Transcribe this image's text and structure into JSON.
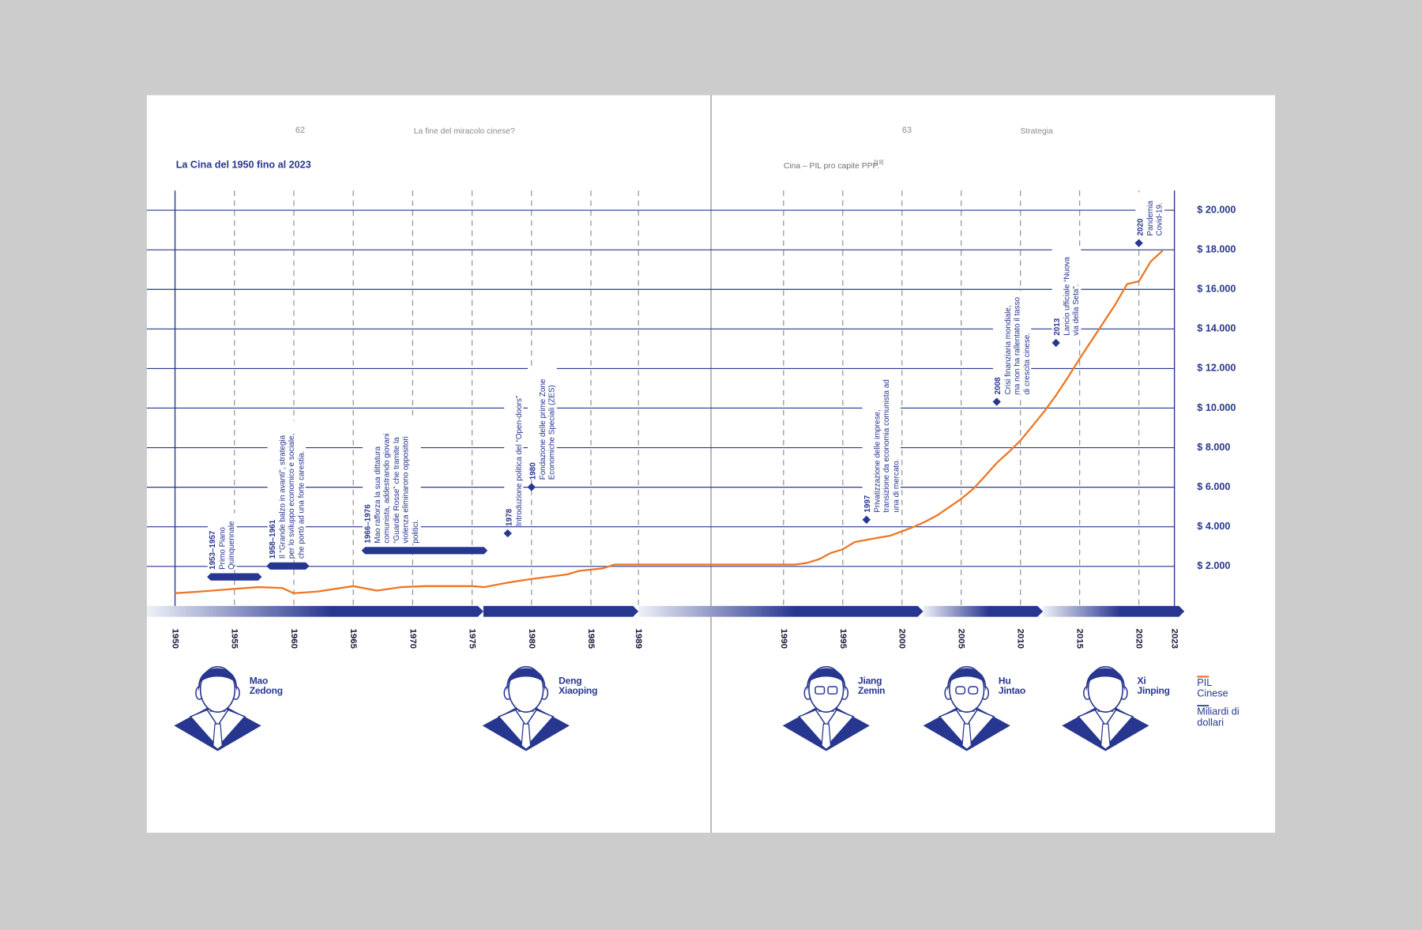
{
  "header": {
    "left_page_number": "62",
    "left_running_title": "La fine del miracolo cinese?",
    "right_page_number": "63",
    "right_running_title": "Strategia"
  },
  "chart_data": {
    "type": "line",
    "title": "La Cina del 1950 fino al 2023",
    "subtitle": "Cina – PIL pro capite PPP.",
    "footnote_ref": "[19]",
    "x": [
      1950,
      1952,
      1955,
      1957,
      1959,
      1960,
      1962,
      1965,
      1967,
      1969,
      1971,
      1975,
      1976,
      1978,
      1980,
      1983,
      1984,
      1986,
      1987,
      1989,
      1990,
      1991,
      1992,
      1993,
      1994,
      1995,
      1996,
      1998,
      1999,
      2000,
      2001,
      2002,
      2003,
      2004,
      2005,
      2006,
      2007,
      2008,
      2009,
      2010,
      2011,
      2012,
      2013,
      2014,
      2015,
      2016,
      2017,
      2018,
      2019,
      2020,
      2021,
      2022
    ],
    "series": [
      {
        "name": "PIL Cinese",
        "color": "#ee7623",
        "values": [
          640,
          720,
          860,
          950,
          910,
          640,
          730,
          1000,
          770,
          950,
          1000,
          1000,
          950,
          1180,
          1360,
          1590,
          1770,
          1900,
          2090,
          2090,
          2090,
          2090,
          2180,
          2360,
          2680,
          2860,
          3230,
          3450,
          3550,
          3770,
          4000,
          4270,
          4590,
          5000,
          5410,
          5910,
          6550,
          7230,
          7770,
          8360,
          9090,
          9820,
          10640,
          11550,
          12500,
          13410,
          14320,
          15230,
          16270,
          16410,
          17410,
          17950
        ]
      }
    ],
    "unit_label": "Miliardi di dollari",
    "axis_color": "#27378f",
    "xlim": [
      1950,
      2023
    ],
    "xbreak": [
      1989,
      1990
    ],
    "xticks": [
      1950,
      1955,
      1960,
      1965,
      1970,
      1975,
      1980,
      1985,
      1989,
      1990,
      1995,
      2000,
      2005,
      2010,
      2015,
      2020,
      2023
    ],
    "ylim": [
      0,
      21000
    ],
    "yticks": [
      {
        "value": 2000,
        "label": "$ 2.000"
      },
      {
        "value": 4000,
        "label": "$ 4.000"
      },
      {
        "value": 6000,
        "label": "$ 6.000"
      },
      {
        "value": 8000,
        "label": "$ 8.000"
      },
      {
        "value": 10000,
        "label": "$ 10.000"
      },
      {
        "value": 12000,
        "label": "$ 12.000"
      },
      {
        "value": 14000,
        "label": "$ 14.000"
      },
      {
        "value": 16000,
        "label": "$ 16.000"
      },
      {
        "value": 18000,
        "label": "$ 18.000"
      },
      {
        "value": 20000,
        "label": "$ 20.000"
      }
    ],
    "grid": true,
    "events": [
      {
        "label": "1953–1957",
        "text": "Primo Piano Quinquennale",
        "from": 1953,
        "to": 1957
      },
      {
        "label": "1958–1961",
        "text": "Il “Grande balzo in avanti”, strategia per lo sviluppo economico e sociale, che portò ad una forte carestia.",
        "from": 1958,
        "to": 1961
      },
      {
        "label": "1966–1976",
        "text": "Mao rafforza la sua dittatura comunista, addestrando giovani “Guardie Rosse” che tramite la violenza eliminarono oppositori politici.",
        "from": 1966,
        "to": 1976
      },
      {
        "label": "1978",
        "text": "Introduzione politica del “Open-doors”",
        "year": 1978
      },
      {
        "label": "1980",
        "text": "Fondazione delle prime Zone Economiche Speciali (ZES)",
        "year": 1980
      },
      {
        "label": "1997",
        "text": "Privatizzazione delle imprese, transizione da economia comunista ad una di mercato.",
        "year": 1997
      },
      {
        "label": "2008",
        "text": "Crisi finanziaria mondiale, ma non ha rallentato il tasso di crescita cinese.",
        "year": 2008
      },
      {
        "label": "2013",
        "text": "Lancio ufficiale “Nuova via della Seta”.",
        "year": 2013
      },
      {
        "label": "2020",
        "text": "Pandemia Covid-19.",
        "year": 2020
      }
    ],
    "leaders": [
      "Mao Zedong",
      "Deng Xiaoping",
      "Jiang Zemin",
      "Hu Jintao",
      "Xi Jinping"
    ]
  }
}
